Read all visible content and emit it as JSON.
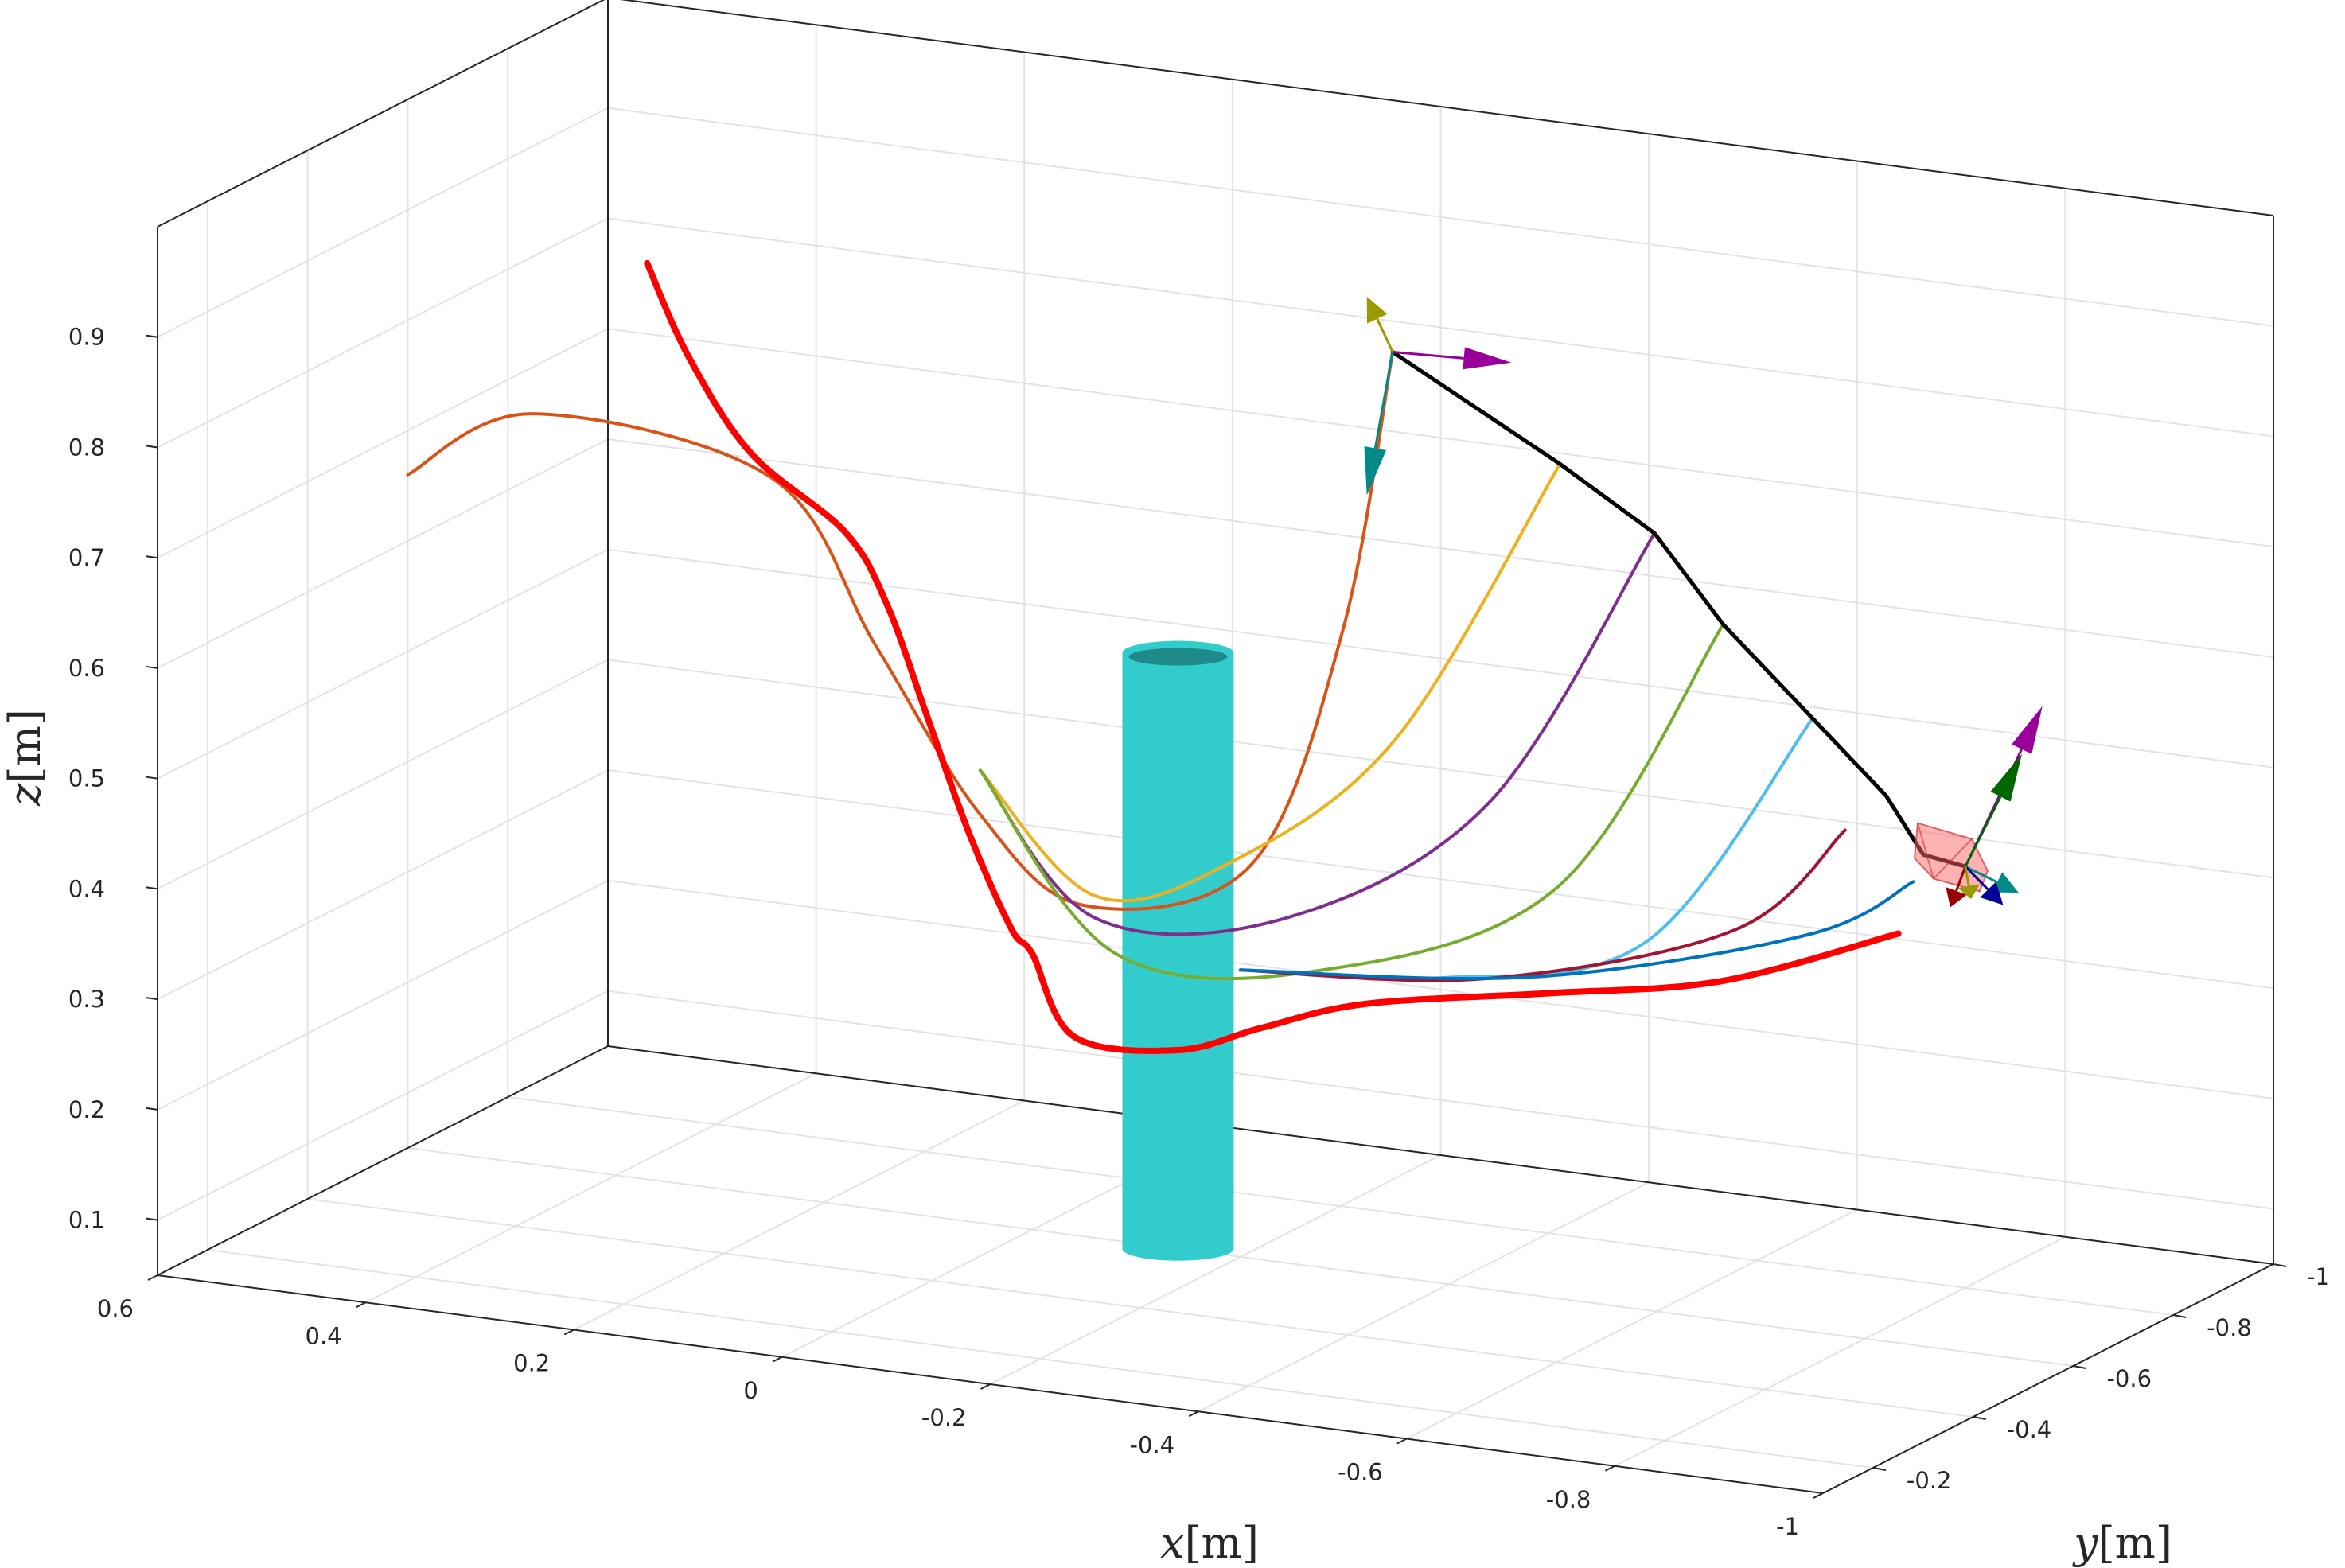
{
  "chart_data": {
    "type": "line",
    "projection": "3d",
    "title": "",
    "xlabel": "x",
    "xlabel_unit": "[m]",
    "ylabel": "y",
    "ylabel_unit": "[m]",
    "zlabel": "z",
    "zlabel_unit": "[m]",
    "xlim": [
      -1,
      0.6
    ],
    "ylim": [
      -1,
      -0.1
    ],
    "zlim": [
      0.05,
      1.0
    ],
    "grid": true,
    "xticks": [
      {
        "value": 0.6,
        "label": "0.6"
      },
      {
        "value": 0.4,
        "label": "0.4"
      },
      {
        "value": 0.2,
        "label": "0.2"
      },
      {
        "value": 0,
        "label": "0"
      },
      {
        "value": -0.2,
        "label": "-0.2"
      },
      {
        "value": -0.4,
        "label": "-0.4"
      },
      {
        "value": -0.6,
        "label": "-0.6"
      },
      {
        "value": -0.8,
        "label": "-0.8"
      },
      {
        "value": -1,
        "label": "-1"
      }
    ],
    "yticks": [
      {
        "value": -0.2,
        "label": "-0.2"
      },
      {
        "value": -0.4,
        "label": "-0.4"
      },
      {
        "value": -0.6,
        "label": "-0.6"
      },
      {
        "value": -0.8,
        "label": "-0.8"
      },
      {
        "value": -1,
        "label": "-1"
      }
    ],
    "zticks": [
      {
        "value": 0.1,
        "label": "0.1"
      },
      {
        "value": 0.2,
        "label": "0.2"
      },
      {
        "value": 0.3,
        "label": "0.3"
      },
      {
        "value": 0.4,
        "label": "0.4"
      },
      {
        "value": 0.5,
        "label": "0.5"
      },
      {
        "value": 0.6,
        "label": "0.6"
      },
      {
        "value": 0.7,
        "label": "0.7"
      },
      {
        "value": 0.8,
        "label": "0.8"
      },
      {
        "value": 0.9,
        "label": "0.9"
      }
    ],
    "obstacle": {
      "type": "cylinder",
      "color": "#33cccc",
      "top_color": "#1f8a8a",
      "x": -0.14,
      "y": -0.6,
      "radius": 0.05,
      "z_bottom": 0.05,
      "z_top": 0.59
    },
    "series": [
      {
        "role": "executed-trajectory",
        "color": "#ff0000",
        "width": 3,
        "points": [
          [
            0.37,
            -0.6,
            0.88
          ],
          [
            0.33,
            -0.6,
            0.8
          ],
          [
            0.27,
            -0.6,
            0.72
          ],
          [
            0.18,
            -0.6,
            0.66
          ],
          [
            0.14,
            -0.6,
            0.6
          ],
          [
            0.1,
            -0.6,
            0.5
          ],
          [
            0.06,
            -0.6,
            0.4
          ],
          [
            0.02,
            -0.6,
            0.32
          ],
          [
            0.0,
            -0.6,
            0.3
          ],
          [
            -0.04,
            -0.6,
            0.23
          ],
          [
            -0.14,
            -0.6,
            0.23
          ],
          [
            -0.22,
            -0.6,
            0.26
          ],
          [
            -0.33,
            -0.58,
            0.3
          ],
          [
            -0.52,
            -0.55,
            0.34
          ],
          [
            -0.7,
            -0.52,
            0.38
          ],
          [
            -0.88,
            -0.5,
            0.45
          ]
        ]
      },
      {
        "role": "end-effector-path",
        "color": "#000000",
        "width": 2,
        "points": [
          [
            -0.25,
            -0.8,
            0.83
          ],
          [
            -0.43,
            -0.76,
            0.76
          ],
          [
            -0.54,
            -0.72,
            0.72
          ],
          [
            -0.63,
            -0.67,
            0.66
          ],
          [
            -0.74,
            -0.62,
            0.6
          ],
          [
            -0.83,
            -0.58,
            0.55
          ],
          [
            -0.88,
            -0.55,
            0.51
          ],
          [
            -0.93,
            -0.53,
            0.51
          ]
        ]
      },
      {
        "role": "candidate",
        "color": "#d95319",
        "points": [
          [
            0.6,
            -0.6,
            0.66
          ],
          [
            0.48,
            -0.6,
            0.73
          ],
          [
            0.25,
            -0.6,
            0.7
          ],
          [
            0.15,
            -0.6,
            0.56
          ],
          [
            0.05,
            -0.6,
            0.42
          ],
          [
            -0.05,
            -0.6,
            0.35
          ],
          [
            -0.2,
            -0.62,
            0.4
          ],
          [
            -0.25,
            -0.7,
            0.6
          ],
          [
            -0.25,
            -0.8,
            0.83
          ]
        ]
      },
      {
        "role": "candidate",
        "color": "#edb120",
        "points": [
          [
            0.05,
            -0.6,
            0.46
          ],
          [
            -0.06,
            -0.6,
            0.36
          ],
          [
            -0.18,
            -0.62,
            0.4
          ],
          [
            -0.32,
            -0.66,
            0.52
          ],
          [
            -0.43,
            -0.76,
            0.76
          ]
        ]
      },
      {
        "role": "candidate",
        "color": "#7e2f8e",
        "points": [
          [
            0.05,
            -0.6,
            0.46
          ],
          [
            -0.06,
            -0.6,
            0.34
          ],
          [
            -0.24,
            -0.61,
            0.36
          ],
          [
            -0.42,
            -0.64,
            0.48
          ],
          [
            -0.54,
            -0.72,
            0.72
          ]
        ]
      },
      {
        "role": "candidate",
        "color": "#77ac30",
        "points": [
          [
            0.05,
            -0.6,
            0.46
          ],
          [
            -0.08,
            -0.6,
            0.31
          ],
          [
            -0.28,
            -0.6,
            0.32
          ],
          [
            -0.5,
            -0.61,
            0.42
          ],
          [
            -0.63,
            -0.67,
            0.66
          ]
        ]
      },
      {
        "role": "candidate",
        "color": "#4dbeee",
        "points": [
          [
            -0.2,
            -0.6,
            0.31
          ],
          [
            -0.4,
            -0.59,
            0.33
          ],
          [
            -0.6,
            -0.58,
            0.39
          ],
          [
            -0.74,
            -0.62,
            0.6
          ]
        ]
      },
      {
        "role": "candidate",
        "color": "#a2142f",
        "points": [
          [
            -0.2,
            -0.6,
            0.31
          ],
          [
            -0.45,
            -0.57,
            0.34
          ],
          [
            -0.7,
            -0.55,
            0.42
          ],
          [
            -0.8,
            -0.56,
            0.52
          ]
        ]
      },
      {
        "role": "candidate",
        "color": "#0072bd",
        "points": [
          [
            -0.2,
            -0.6,
            0.31
          ],
          [
            -0.5,
            -0.56,
            0.35
          ],
          [
            -0.78,
            -0.53,
            0.43
          ],
          [
            -0.88,
            -0.53,
            0.49
          ]
        ]
      }
    ],
    "frames": [
      {
        "origin": [
          -0.25,
          -0.8,
          0.83
        ],
        "axes": [
          {
            "color": "#990099",
            "dir": [
              -0.09,
              -0.05,
              -0.01
            ]
          },
          {
            "color": "#008b8b",
            "dir": [
              0.02,
              0.01,
              -0.13
            ]
          },
          {
            "color": "#999900",
            "dir": [
              0.02,
              0.01,
              0.05
            ]
          }
        ]
      },
      {
        "origin": [
          -0.93,
          -0.53,
          0.51
        ],
        "axes": [
          {
            "color": "#008b8b",
            "dir": [
              -0.08,
              0.06,
              0.0
            ]
          },
          {
            "color": "#000099",
            "dir": [
              -0.07,
              0.07,
              -0.01
            ]
          },
          {
            "color": "#990099",
            "dir": [
              -0.05,
              -0.05,
              0.14
            ]
          },
          {
            "color": "#006600",
            "dir": [
              -0.04,
              -0.03,
              0.1
            ]
          },
          {
            "color": "#990000",
            "dir": [
              0.0,
              0.03,
              -0.03
            ]
          },
          {
            "color": "#999900",
            "dir": [
              -0.02,
              0.03,
              -0.02
            ]
          }
        ]
      }
    ],
    "tool": {
      "type": "box",
      "color": "#ff6666",
      "center": [
        -0.91,
        -0.54,
        0.51
      ]
    }
  }
}
